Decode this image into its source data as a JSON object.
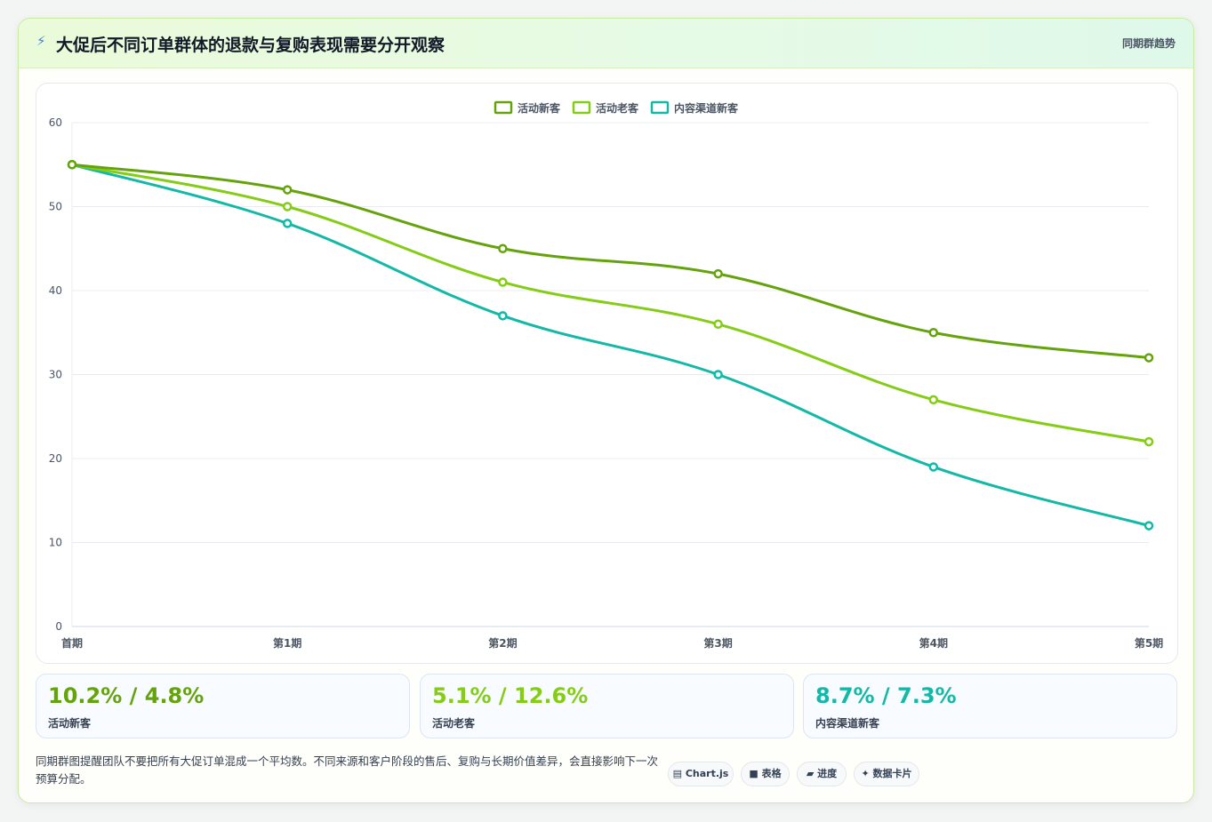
{
  "header": {
    "title": "大促后不同订单群体的退款与复购表现需要分开观察",
    "tag": "同期群趋势"
  },
  "colors": {
    "series_1": "#65a30d",
    "series_2": "#84cc16",
    "series_3": "#14b8a6"
  },
  "chart_data": {
    "type": "line",
    "categories": [
      "首期",
      "第1期",
      "第2期",
      "第3期",
      "第4期",
      "第5期"
    ],
    "series": [
      {
        "name": "活动新客",
        "values": [
          55,
          52,
          45,
          42,
          35,
          32
        ]
      },
      {
        "name": "活动老客",
        "values": [
          55,
          50,
          41,
          36,
          27,
          22
        ]
      },
      {
        "name": "内容渠道新客",
        "values": [
          55,
          48,
          37,
          30,
          19,
          12
        ]
      }
    ],
    "ylim": [
      0,
      60
    ],
    "yticks": [
      "0",
      "10",
      "20",
      "30",
      "40",
      "50",
      "60"
    ],
    "grid": true,
    "legend": "top-center"
  },
  "kpis": [
    {
      "value": "10.2% / 4.8%",
      "label": "活动新客"
    },
    {
      "value": "5.1% / 12.6%",
      "label": "活动老客"
    },
    {
      "value": "8.7% / 7.3%",
      "label": "内容渠道新客"
    }
  ],
  "footnote": "同期群图提醒团队不要把所有大促订单混成一个平均数。不同来源和客户阶段的售后、复购与长期价值差异，会直接影响下一次预算分配。",
  "chips": [
    "▤ Chart.js",
    "■ 表格",
    "▰ 进度",
    "✦ 数据卡片"
  ]
}
